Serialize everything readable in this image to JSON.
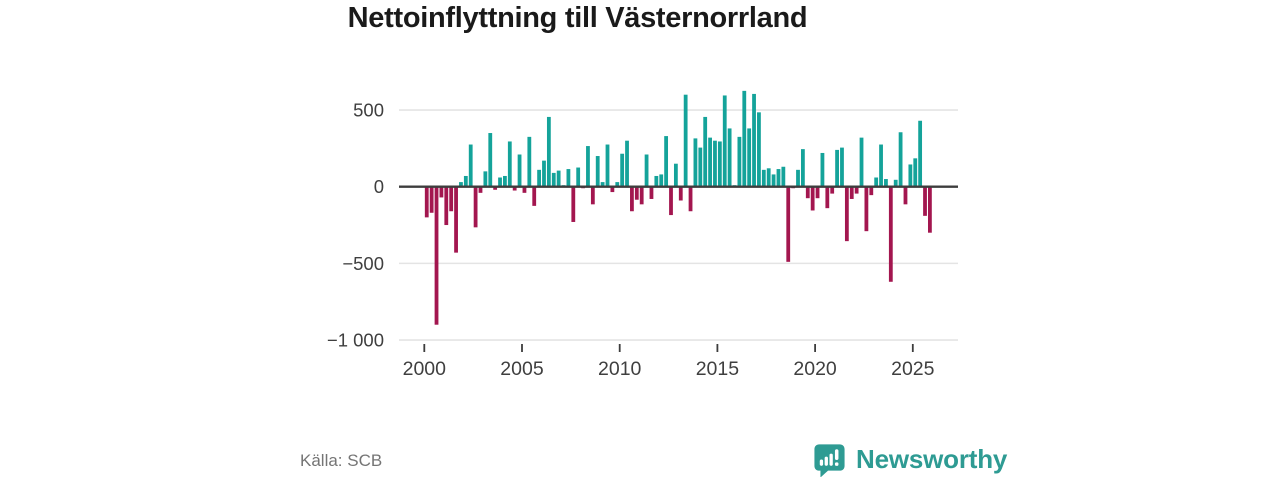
{
  "title": "Nettoinflyttning till Västernorrland",
  "colors": {
    "positive": "#14a39a",
    "negative": "#a3164f",
    "zero_line": "#3d3d3d",
    "gridline": "#e4e4e4",
    "axis_text": "#3f3f3f",
    "title_text": "#1a1a1a",
    "source_text": "#757575",
    "brand": "#2e9b93"
  },
  "y_axis": {
    "ticks": [
      {
        "label": "500",
        "value": 500
      },
      {
        "label": "0",
        "value": 0
      },
      {
        "label": "−500",
        "value": -500
      },
      {
        "label": "−1 000",
        "value": -1000
      }
    ]
  },
  "x_axis": {
    "years": [
      2000,
      2005,
      2010,
      2015,
      2020,
      2025
    ]
  },
  "chart_data": {
    "type": "bar",
    "frequency": "quarterly",
    "start": "2000Q1",
    "end": "2025Q4",
    "ylim": [
      -1000,
      660
    ],
    "grid": true,
    "series_name": "Nettoinflyttning per kvartal",
    "years": [
      {
        "year": 2000,
        "values": [
          -200,
          -170,
          -900,
          -70
        ]
      },
      {
        "year": 2001,
        "values": [
          -250,
          -160,
          -430,
          30
        ]
      },
      {
        "year": 2002,
        "values": [
          70,
          275,
          -265,
          -40
        ]
      },
      {
        "year": 2003,
        "values": [
          100,
          350,
          -20,
          60
        ]
      },
      {
        "year": 2004,
        "values": [
          70,
          295,
          -25,
          210
        ]
      },
      {
        "year": 2005,
        "values": [
          -40,
          325,
          -125,
          110
        ]
      },
      {
        "year": 2006,
        "values": [
          170,
          455,
          90,
          105
        ]
      },
      {
        "year": 2007,
        "values": [
          10,
          115,
          -230,
          125
        ]
      },
      {
        "year": 2008,
        "values": [
          -10,
          265,
          -115,
          200
        ]
      },
      {
        "year": 2009,
        "values": [
          30,
          275,
          -35,
          30
        ]
      },
      {
        "year": 2010,
        "values": [
          215,
          300,
          -160,
          -85
        ]
      },
      {
        "year": 2011,
        "values": [
          -115,
          210,
          -80,
          70
        ]
      },
      {
        "year": 2012,
        "values": [
          80,
          330,
          -185,
          150
        ]
      },
      {
        "year": 2013,
        "values": [
          -90,
          600,
          -160,
          315
        ]
      },
      {
        "year": 2014,
        "values": [
          255,
          455,
          320,
          300
        ]
      },
      {
        "year": 2015,
        "values": [
          295,
          595,
          380,
          10
        ]
      },
      {
        "year": 2016,
        "values": [
          325,
          625,
          380,
          605
        ]
      },
      {
        "year": 2017,
        "values": [
          485,
          110,
          120,
          80
        ]
      },
      {
        "year": 2018,
        "values": [
          115,
          130,
          -490,
          -10
        ]
      },
      {
        "year": 2019,
        "values": [
          110,
          245,
          -75,
          -155
        ]
      },
      {
        "year": 2020,
        "values": [
          -75,
          220,
          -140,
          -45
        ]
      },
      {
        "year": 2021,
        "values": [
          240,
          255,
          -355,
          -80
        ]
      },
      {
        "year": 2022,
        "values": [
          -45,
          320,
          -290,
          -55
        ]
      },
      {
        "year": 2023,
        "values": [
          60,
          275,
          50,
          -620
        ]
      },
      {
        "year": 2024,
        "values": [
          45,
          355,
          -115,
          145
        ]
      },
      {
        "year": 2025,
        "values": [
          185,
          430,
          -190,
          -300
        ]
      }
    ]
  },
  "footer": {
    "source": "Källa: SCB",
    "brand": "Newsworthy"
  }
}
